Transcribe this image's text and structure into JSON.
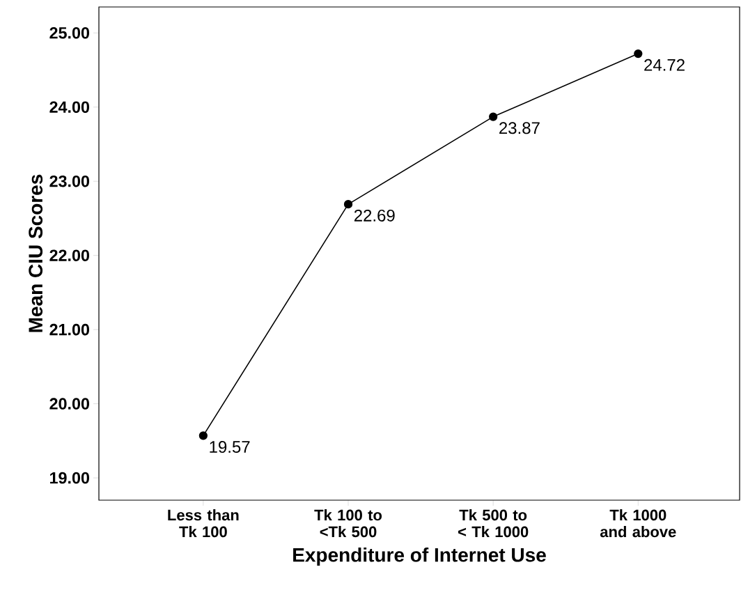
{
  "chart_data": {
    "type": "line",
    "xlabel": "Expenditure of Internet Use",
    "ylabel": "Mean CIU Scores",
    "categories": [
      "Less than Tk 100",
      "Tk 100 to <Tk 500",
      "Tk 500 to < Tk 1000",
      "Tk 1000 and above"
    ],
    "series": [
      {
        "color": "#000000",
        "values": [
          19.57,
          22.69,
          23.87,
          24.72
        ]
      }
    ],
    "ylim": [
      18.7,
      25.35
    ],
    "yticks": [
      {
        "value": 19,
        "label": "19.00"
      },
      {
        "value": 20,
        "label": "20.00"
      },
      {
        "value": 21,
        "label": "21.00"
      },
      {
        "value": 22,
        "label": "22.00"
      },
      {
        "value": 23,
        "label": "23.00"
      },
      {
        "value": 24,
        "label": "24.00"
      },
      {
        "value": 25,
        "label": "25.00"
      }
    ],
    "marker": "circle",
    "data_labels": true,
    "grid": false
  }
}
